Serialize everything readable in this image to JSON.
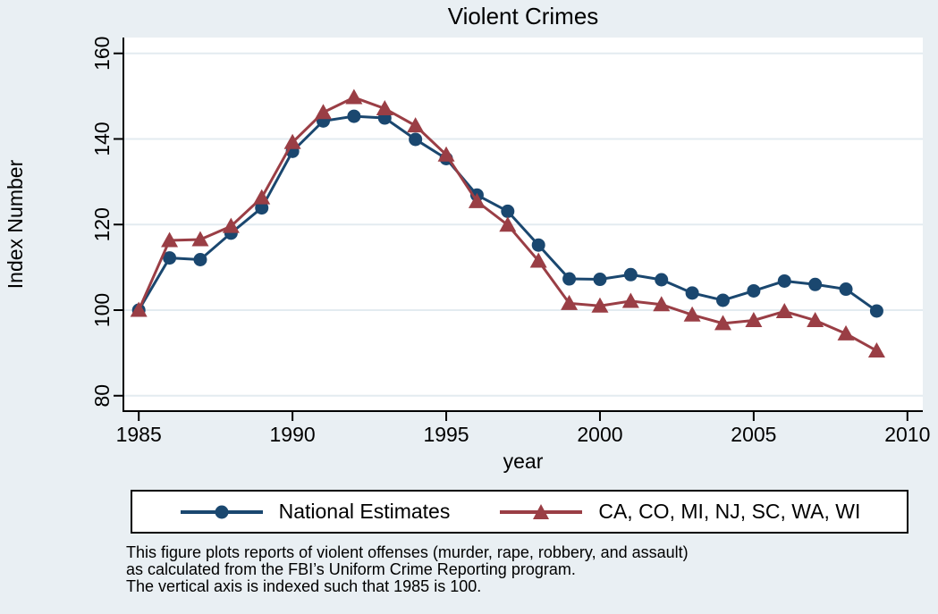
{
  "figure": {
    "title": "Violent Crimes",
    "colors": {
      "background": "#e9eff3",
      "plot_background": "#ffffff",
      "gridline": "#e3ebf0",
      "axis": "#000000",
      "national": "#1a476f",
      "states": "#9a3e45"
    },
    "legend": {
      "items": [
        {
          "label": "National Estimates",
          "marker": "circle",
          "color": "#1a476f"
        },
        {
          "label": "CA, CO, MI, NJ, SC, WA, WI",
          "marker": "triangle",
          "color": "#9a3e45"
        }
      ]
    },
    "notes": [
      "This figure plots reports of violent offenses (murder, rape, robbery, and assault)",
      "as calculated from the FBI’s Uniform Crime Reporting program.",
      "The vertical axis is indexed such that 1985 is 100."
    ]
  },
  "chart_data": {
    "type": "line",
    "title": "Violent Crimes",
    "xlabel": "year",
    "ylabel": "Index Number",
    "x": [
      1985,
      1986,
      1987,
      1988,
      1989,
      1990,
      1991,
      1992,
      1993,
      1994,
      1995,
      1996,
      1997,
      1998,
      1999,
      2000,
      2001,
      2002,
      2003,
      2004,
      2005,
      2006,
      2007,
      2008,
      2009
    ],
    "series": [
      {
        "name": "National Estimates",
        "marker": "circle",
        "color": "#1a476f",
        "values": [
          100,
          112.2,
          111.8,
          118.0,
          123.9,
          137.1,
          144.2,
          145.3,
          144.9,
          139.9,
          135.4,
          126.9,
          123.1,
          115.2,
          107.3,
          107.2,
          108.3,
          107.1,
          104.0,
          102.3,
          104.5,
          106.8,
          106.0,
          104.9,
          99.8
        ]
      },
      {
        "name": "CA, CO, MI, NJ, SC, WA, WI",
        "marker": "triangle",
        "color": "#9a3e45",
        "values": [
          100,
          116.3,
          116.5,
          119.6,
          126.3,
          139.2,
          146.2,
          149.7,
          147.1,
          143.1,
          136.3,
          125.4,
          119.9,
          111.5,
          101.6,
          101.0,
          102.1,
          101.3,
          98.9,
          96.9,
          97.6,
          99.7,
          97.6,
          94.5,
          90.5
        ]
      }
    ],
    "xticks": [
      1985,
      1990,
      1995,
      2000,
      2005,
      2010
    ],
    "yticks": [
      80,
      100,
      120,
      140,
      160
    ],
    "xlim": [
      1984.5,
      2010.5
    ],
    "ylim": [
      76.4,
      163.7
    ],
    "grid": true,
    "legend_position": "bottom"
  }
}
